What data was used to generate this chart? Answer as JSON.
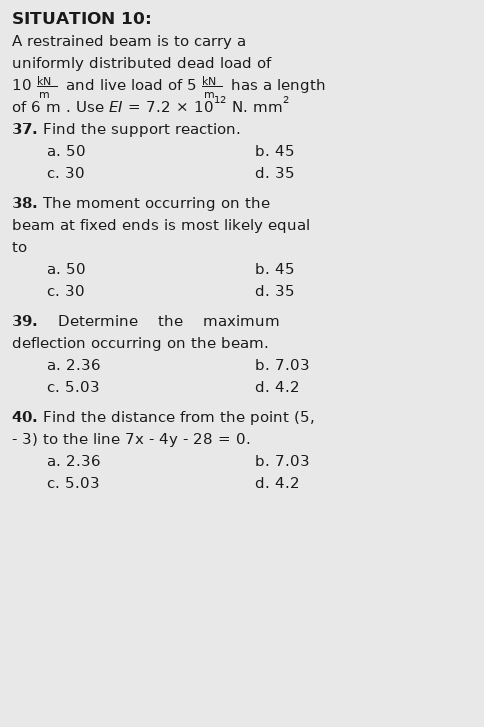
{
  "bg_color": "#e8e8e8",
  "text_color": "#1a1a1a",
  "figsize": [
    4.84,
    7.27
  ],
  "dpi": 100
}
